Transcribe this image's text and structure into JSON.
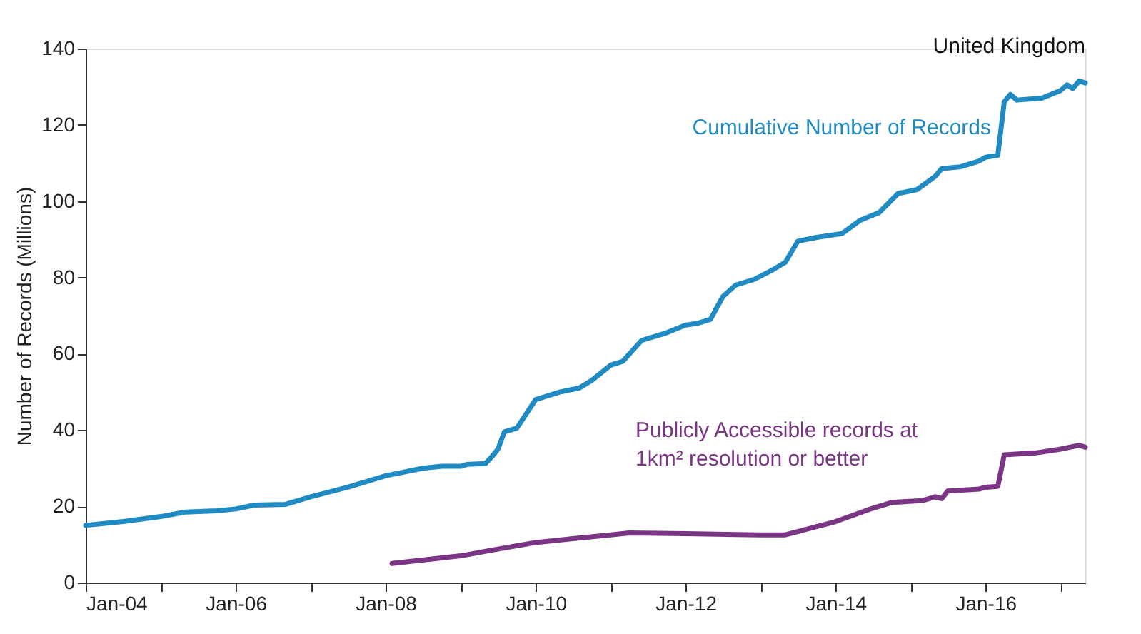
{
  "chart_data": {
    "type": "line",
    "ylabel": "Number of Records (Millions)",
    "annotations": [
      "United Kingdom"
    ],
    "x": [
      "2004-01",
      "2004-07",
      "2005-01",
      "2005-05",
      "2005-10",
      "2006-01",
      "2006-04",
      "2006-09",
      "2007-01",
      "2007-07",
      "2008-01",
      "2008-07",
      "2008-10",
      "2009-01",
      "2009-02",
      "2009-05",
      "2009-06",
      "2009-07",
      "2009-08",
      "2009-10",
      "2010-01",
      "2010-05",
      "2010-08",
      "2010-10",
      "2011-01",
      "2011-03",
      "2011-06",
      "2011-10",
      "2012-01",
      "2012-03",
      "2012-05",
      "2012-07",
      "2012-09",
      "2012-12",
      "2013-03",
      "2013-05",
      "2013-07",
      "2013-10",
      "2014-02",
      "2014-05",
      "2014-08",
      "2014-11",
      "2015-02",
      "2015-05",
      "2015-06",
      "2015-09",
      "2015-12",
      "2016-01",
      "2016-03",
      "2016-04",
      "2016-05",
      "2016-06",
      "2016-10",
      "2017-01",
      "2017-02",
      "2017-03",
      "2017-04",
      "2017-05"
    ],
    "series": [
      {
        "name": "Cumulative Number of Records",
        "color": "#1f8bc2",
        "values": [
          15,
          16,
          17.3,
          18.5,
          18.8,
          19.3,
          20.3,
          20.5,
          22.5,
          25,
          28,
          30,
          30.5,
          30.5,
          31,
          31.2,
          33,
          35,
          39.5,
          40.5,
          48,
          50,
          51,
          53,
          57,
          58,
          63.5,
          65.5,
          67.5,
          68,
          69,
          75,
          78,
          79.5,
          82,
          84,
          89.5,
          90.5,
          91.5,
          95,
          97,
          102,
          103,
          106.5,
          108.5,
          109,
          110.5,
          111.5,
          112,
          126,
          128,
          126.5,
          127,
          129,
          130.5,
          129.5,
          131.5,
          131
        ]
      },
      {
        "name": "Publicly Accessible records at 1km² resolution or better",
        "color": "#7b3585",
        "x": [
          "2008-02",
          "2009-01",
          "2009-06",
          "2010-01",
          "2010-07",
          "2011-01",
          "2011-04",
          "2012-01",
          "2013-01",
          "2013-05",
          "2014-01",
          "2014-07",
          "2014-10",
          "2015-03",
          "2015-05",
          "2015-06",
          "2015-07",
          "2015-12",
          "2016-01",
          "2016-03",
          "2016-04",
          "2016-09",
          "2017-01",
          "2017-04",
          "2017-05"
        ],
        "values": [
          5,
          7,
          8.5,
          10.5,
          11.5,
          12.5,
          13,
          12.8,
          12.5,
          12.5,
          16,
          19.5,
          21,
          21.5,
          22.5,
          22,
          24,
          24.5,
          25,
          25.2,
          33.5,
          34,
          35,
          36,
          35.5
        ]
      }
    ],
    "xlim": [
      "2004-01",
      "2017-05"
    ],
    "xticks": [
      {
        "value": "2004-01",
        "label": "Jan-04"
      },
      {
        "value": "2005-01",
        "label": null
      },
      {
        "value": "2006-01",
        "label": "Jan-06"
      },
      {
        "value": "2007-01",
        "label": null
      },
      {
        "value": "2008-01",
        "label": "Jan-08"
      },
      {
        "value": "2009-01",
        "label": null
      },
      {
        "value": "2010-01",
        "label": "Jan-10"
      },
      {
        "value": "2011-01",
        "label": null
      },
      {
        "value": "2012-01",
        "label": "Jan-12"
      },
      {
        "value": "2013-01",
        "label": null
      },
      {
        "value": "2014-01",
        "label": "Jan-14"
      },
      {
        "value": "2015-01",
        "label": null
      },
      {
        "value": "2016-01",
        "label": "Jan-16"
      },
      {
        "value": "2017-01",
        "label": null
      }
    ],
    "ylim": [
      0,
      140
    ],
    "yticks": [
      0,
      20,
      40,
      60,
      80,
      100,
      120,
      140
    ],
    "grid": false,
    "line_style": "solid",
    "marker": "none"
  }
}
